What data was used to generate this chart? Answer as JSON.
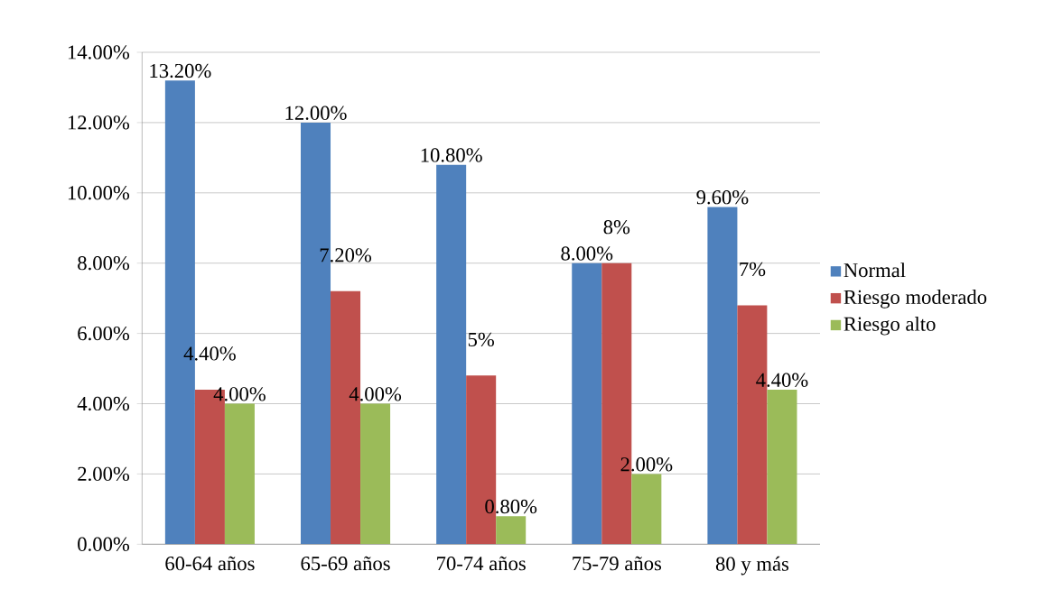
{
  "chart_data": {
    "type": "bar",
    "categories": [
      "60-64 años",
      "65-69 años",
      "70-74 años",
      "75-79 años",
      "80 y más"
    ],
    "series": [
      {
        "name": "Normal",
        "color": "#4f81bd",
        "values": [
          13.2,
          12.0,
          10.8,
          8.0,
          9.6
        ],
        "value_labels": [
          "13.20%",
          "12.00%",
          "10.80%",
          "8.00%",
          "9.60%"
        ]
      },
      {
        "name": "Riesgo moderado",
        "color": "#c0504d",
        "values": [
          4.4,
          7.2,
          4.8,
          8.0,
          6.8
        ],
        "value_labels": [
          "4.40%",
          "7.20%",
          "5%",
          "8%",
          "7%"
        ]
      },
      {
        "name": "Riesgo alto",
        "color": "#9bbb59",
        "values": [
          4.0,
          4.0,
          0.8,
          2.0,
          4.4
        ],
        "value_labels": [
          "4.00%",
          "4.00%",
          "0.80%",
          "2.00%",
          "4.40%"
        ]
      }
    ],
    "ylim": [
      0,
      14
    ],
    "yticks": [
      {
        "value": 0,
        "label": "0.00%"
      },
      {
        "value": 2,
        "label": "2.00%"
      },
      {
        "value": 4,
        "label": "4.00%"
      },
      {
        "value": 6,
        "label": "6.00%"
      },
      {
        "value": 8,
        "label": "8.00%"
      },
      {
        "value": 10,
        "label": "10.00%"
      },
      {
        "value": 12,
        "label": "12.00%"
      },
      {
        "value": 14,
        "label": "14.00%"
      }
    ],
    "grid": "y",
    "legend": "right"
  }
}
